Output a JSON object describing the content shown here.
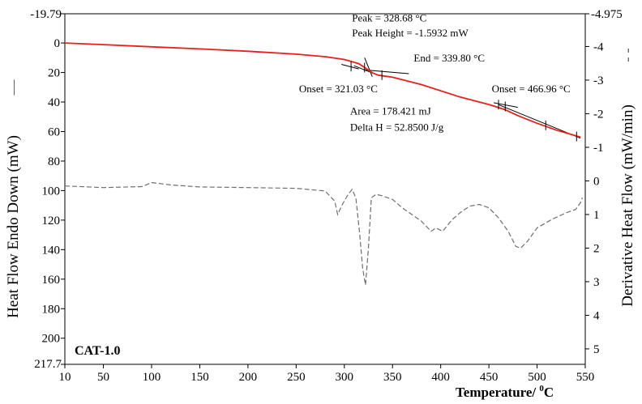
{
  "chart_data": {
    "type": "line",
    "sample_label": "CAT-1.0",
    "x_axis": {
      "label_main": "Temperature/ ",
      "label_sup": "0",
      "label_unit": "C",
      "range": [
        10,
        550
      ],
      "ticks": [
        10,
        50,
        100,
        150,
        200,
        250,
        300,
        350,
        400,
        450,
        500,
        550
      ]
    },
    "left_axis": {
      "label_main": "Heat Flow Endo Down (mW)",
      "legend_marker": "—",
      "range": [
        -19.79,
        217.7
      ],
      "inverted": true,
      "ticks": [
        0,
        20,
        40,
        60,
        80,
        100,
        120,
        140,
        160,
        180,
        200
      ],
      "end_labels": [
        "-19.79",
        "217.7"
      ]
    },
    "right_axis": {
      "label_main": "Derivative Heat Flow (mW/min)",
      "legend_marker": "- -",
      "range": [
        -4.975,
        5.46
      ],
      "inverted": true,
      "ticks": [
        -4,
        -3,
        -2,
        -1,
        0,
        1,
        2,
        3,
        4,
        5
      ],
      "top_label": "-4.975"
    },
    "colors": {
      "heat_flow": "#e8201a",
      "derivative": "#6e6e6e",
      "tangent": "#000000"
    },
    "series": [
      {
        "name": "Heat Flow",
        "axis": "left",
        "style": "solid",
        "x": [
          10,
          50,
          100,
          150,
          200,
          250,
          280,
          300,
          315,
          322,
          329,
          335,
          340,
          350,
          380,
          420,
          450,
          466,
          480,
          500,
          520,
          540,
          545
        ],
        "y": [
          0,
          1.1,
          2.6,
          4.0,
          5.6,
          7.6,
          9.3,
          11.2,
          14.0,
          17.0,
          20.2,
          21.8,
          22.3,
          23.2,
          28.2,
          36.6,
          41.7,
          45.0,
          49.2,
          54.4,
          59.0,
          62.8,
          63.8
        ]
      },
      {
        "name": "Derivative Heat Flow",
        "axis": "right",
        "style": "dashed",
        "x": [
          10,
          50,
          90,
          100,
          120,
          150,
          200,
          250,
          280,
          290,
          293,
          298,
          303,
          308,
          312,
          316,
          319,
          322,
          325,
          328,
          333,
          340,
          350,
          360,
          370,
          380,
          390,
          395,
          402,
          412,
          420,
          430,
          440,
          450,
          460,
          470,
          478,
          483,
          490,
          500,
          515,
          530,
          540,
          545,
          547
        ],
        "y": [
          0.15,
          0.2,
          0.17,
          0.05,
          0.12,
          0.18,
          0.2,
          0.22,
          0.3,
          0.6,
          1.0,
          0.7,
          0.45,
          0.25,
          0.5,
          1.6,
          2.6,
          3.1,
          2.0,
          0.5,
          0.4,
          0.45,
          0.55,
          0.8,
          1.0,
          1.2,
          1.5,
          1.4,
          1.5,
          1.15,
          0.95,
          0.75,
          0.7,
          0.8,
          1.1,
          1.5,
          1.95,
          2.0,
          1.8,
          1.4,
          1.15,
          0.95,
          0.85,
          0.65,
          0.5
        ]
      }
    ],
    "tangents": [
      [
        [
          297,
          14.5
        ],
        [
          315,
          17.6
        ]
      ],
      [
        [
          310,
          15.4
        ],
        [
          333,
          21.3
        ]
      ],
      [
        [
          320,
          18.2
        ],
        [
          367,
          20.8
        ]
      ],
      [
        [
          321,
          10.0
        ],
        [
          329,
          22.8
        ]
      ],
      [
        [
          455,
          40.5
        ],
        [
          480,
          43.6
        ]
      ],
      [
        [
          460,
          41.8
        ],
        [
          545,
          64.5
        ]
      ]
    ],
    "marker_ticks": [
      [
        307,
        16.0
      ],
      [
        321,
        16.6
      ],
      [
        339,
        21.8
      ],
      [
        466.96,
        43.0
      ],
      [
        509,
        55.8
      ],
      [
        541,
        63.3
      ],
      [
        460,
        41.8
      ]
    ],
    "annotations": [
      {
        "text": "Peak = 328.68 °C",
        "x": 308,
        "y": -14.5
      },
      {
        "text": "Peak Height = -1.5932 mW",
        "x": 308,
        "y": -4.5
      },
      {
        "text": "End = 339.80 °C",
        "x": 372,
        "y": 12.5
      },
      {
        "text": "Onset = 321.03 °C",
        "x": 253,
        "y": 33.5
      },
      {
        "text": "Onset = 466.96 °C",
        "x": 453,
        "y": 33.5
      },
      {
        "text": "Area = 178.421 mJ",
        "x": 306,
        "y": 48.5
      },
      {
        "text": "Delta H = 52.8500 J/g",
        "x": 306,
        "y": 59.5
      }
    ]
  }
}
